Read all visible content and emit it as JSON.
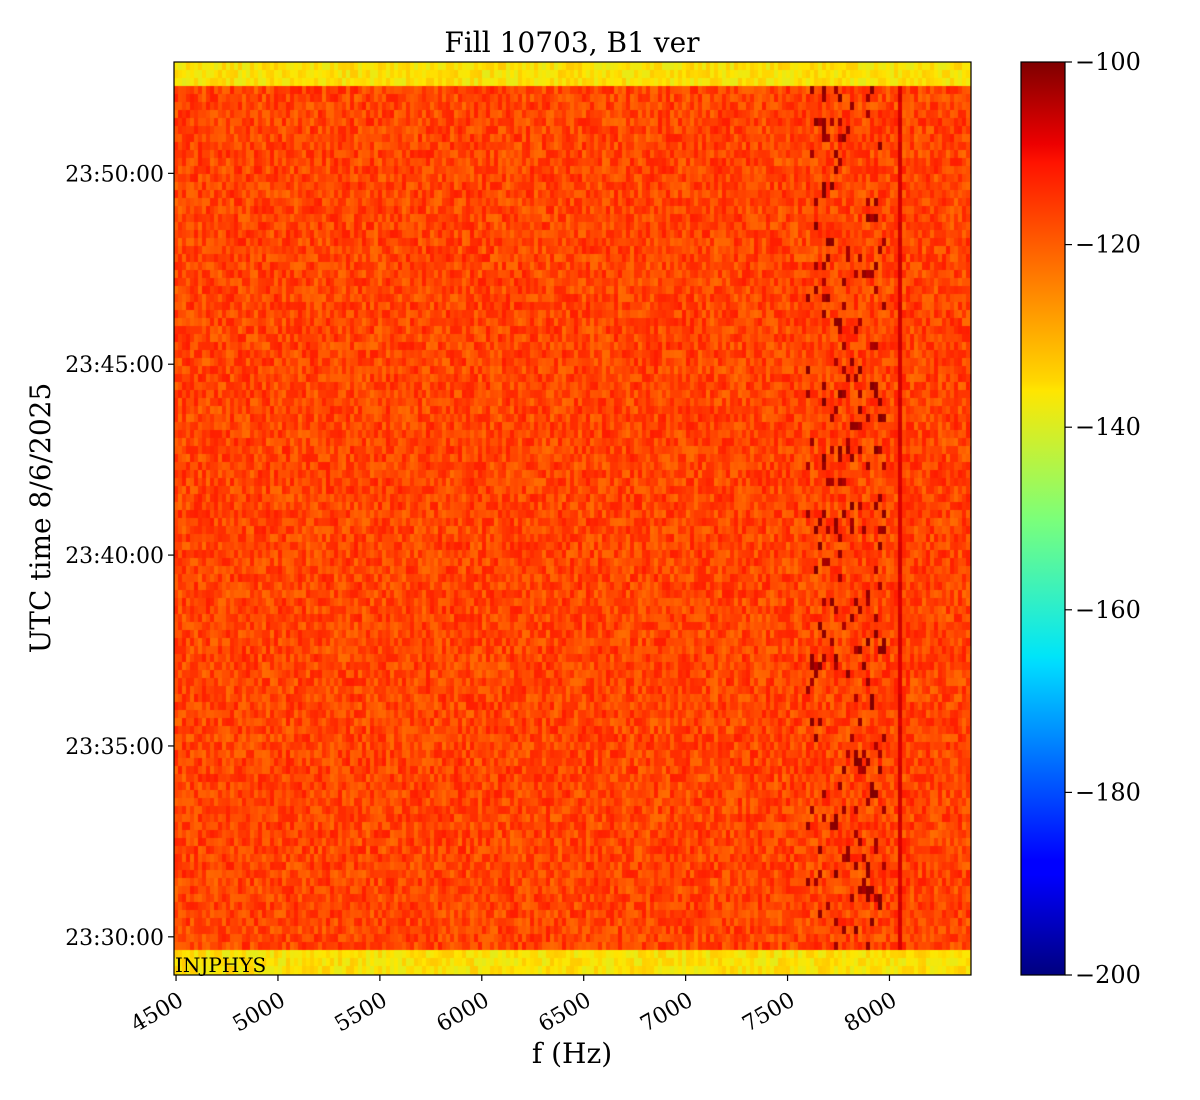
{
  "chart_data": {
    "type": "heatmap",
    "title": "Fill 10703, B1 ver",
    "xlabel": "f (Hz)",
    "ylabel": "UTC time 8/6/2025",
    "xlim": [
      4490,
      8400
    ],
    "x_ticks": [
      4500,
      5000,
      5500,
      6000,
      6500,
      7000,
      7500,
      8000
    ],
    "x_tick_labels": [
      "4500",
      "5000",
      "5500",
      "6000",
      "6500",
      "7000",
      "7500",
      "8000"
    ],
    "y_range": [
      "23:29:00",
      "23:52:55"
    ],
    "y_ticks": [
      "23:30:00",
      "23:35:00",
      "23:40:00",
      "23:45:00",
      "23:50:00"
    ],
    "colorscale": "jet",
    "colorbar": {
      "vmin": -200,
      "vmax": -100,
      "ticks": [
        -100,
        -120,
        -140,
        -160,
        -180,
        -200
      ],
      "tick_labels": [
        "−100",
        "−120",
        "−140",
        "−160",
        "−180",
        "−200"
      ]
    },
    "background_level_db": [
      -122,
      -112
    ],
    "edge_rows_level_db": -136,
    "edge_rows_at": [
      "23:29:05",
      "23:29:20",
      "23:52:35",
      "23:52:50"
    ],
    "features": [
      {
        "kind": "narrow line",
        "frequency_hz": 8060,
        "level_db": -108
      },
      {
        "kind": "spot cluster",
        "frequency_range_hz": [
          7600,
          7980
        ],
        "level_db": [
          -104,
          -100
        ]
      }
    ],
    "annotation": "INJPHYS",
    "grid": false,
    "legend": "colorbar-right"
  }
}
